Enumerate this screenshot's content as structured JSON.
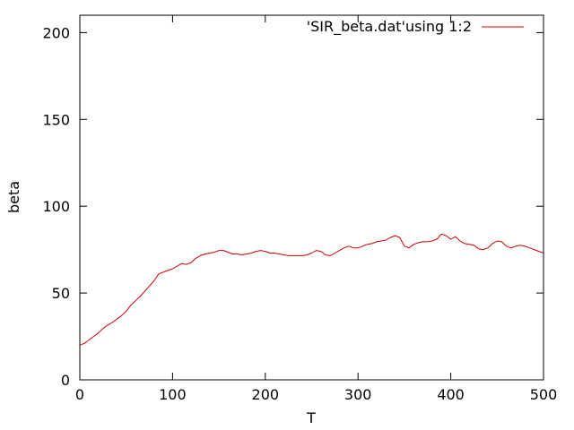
{
  "chart_data": {
    "type": "line",
    "title": "",
    "xlabel": "T",
    "ylabel": "beta",
    "xlim": [
      0,
      500
    ],
    "ylim": [
      0,
      210
    ],
    "xticks": [
      0,
      100,
      200,
      300,
      400,
      500
    ],
    "yticks": [
      0,
      50,
      100,
      150,
      200
    ],
    "grid": false,
    "legend_position": "top-right",
    "series": [
      {
        "name": "'SIR_beta.dat'using 1:2",
        "color": "#cc0000",
        "x": [
          0,
          5,
          10,
          15,
          20,
          25,
          30,
          35,
          40,
          45,
          50,
          55,
          60,
          65,
          70,
          75,
          80,
          85,
          90,
          95,
          100,
          105,
          110,
          115,
          120,
          125,
          130,
          135,
          140,
          145,
          150,
          155,
          160,
          165,
          170,
          175,
          180,
          185,
          190,
          195,
          200,
          205,
          210,
          215,
          220,
          225,
          230,
          235,
          240,
          245,
          250,
          255,
          260,
          265,
          270,
          275,
          280,
          285,
          290,
          295,
          300,
          305,
          310,
          315,
          320,
          325,
          330,
          335,
          340,
          345,
          350,
          355,
          360,
          365,
          370,
          375,
          380,
          385,
          390,
          395,
          400,
          405,
          410,
          415,
          420,
          425,
          430,
          435,
          440,
          445,
          450,
          455,
          460,
          465,
          470,
          475,
          480,
          485,
          490,
          495,
          500
        ],
        "y": [
          20,
          21,
          23,
          25,
          27,
          29.5,
          31.5,
          33,
          35,
          37,
          39.5,
          43,
          45.5,
          48,
          51,
          54,
          57,
          61,
          62,
          63,
          64,
          65.5,
          67,
          66.5,
          67.5,
          70,
          71.5,
          72.5,
          73,
          73.5,
          74.5,
          74.5,
          73.5,
          72.5,
          72.5,
          72,
          72.5,
          73,
          74,
          74.5,
          74,
          73,
          73,
          72.5,
          72,
          71.5,
          71.5,
          71.5,
          71.5,
          72,
          73,
          74.5,
          74,
          72,
          71.5,
          73,
          74.5,
          76,
          77,
          76,
          76,
          77,
          78,
          78.5,
          79.5,
          80,
          80.5,
          82,
          83,
          82,
          77,
          76,
          78,
          79,
          79.5,
          79.5,
          80,
          81,
          84,
          83,
          81,
          82.5,
          80,
          78.5,
          78,
          77.5,
          75.5,
          75,
          76,
          78.5,
          80,
          79.5,
          77,
          76,
          77,
          77.5,
          77,
          76,
          75,
          74,
          73
        ]
      }
    ]
  }
}
